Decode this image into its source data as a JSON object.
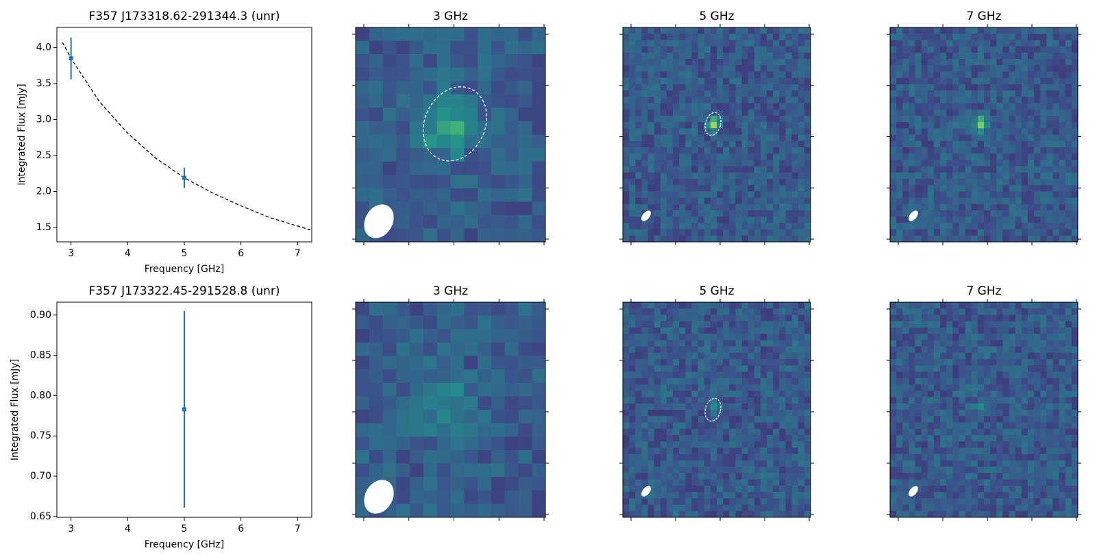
{
  "chart_data": [
    {
      "type": "errorbar",
      "title": "F357 J173318.62-291344.3 (unr)",
      "xlabel": "Frequency [GHz]",
      "ylabel": "Integrated Flux [mJy]",
      "x": [
        3,
        5
      ],
      "values": [
        3.85,
        2.19
      ],
      "errors": [
        0.29,
        0.14
      ],
      "color": "#1f77b4",
      "fit": {
        "x": [
          2.85,
          3,
          3.5,
          4,
          4.5,
          5,
          5.5,
          6,
          6.5,
          7,
          7.25
        ],
        "y": [
          4.07,
          3.85,
          3.25,
          2.81,
          2.46,
          2.19,
          1.98,
          1.8,
          1.64,
          1.52,
          1.46
        ]
      },
      "xlim": [
        2.75,
        7.25
      ],
      "ylim": [
        1.3,
        4.28
      ],
      "xticks": [
        3,
        4,
        5,
        6,
        7
      ],
      "yticks": [
        1.5,
        {
          "value": 2,
          "label": "2.0"
        },
        2.5,
        {
          "value": 3,
          "label": "3.0"
        },
        3.5,
        {
          "value": 4,
          "label": "4.0"
        }
      ]
    },
    {
      "type": "errorbar",
      "title": "F357 J173322.45-291528.8 (unr)",
      "xlabel": "Frequency [GHz]",
      "ylabel": "Integrated Flux [mJy]",
      "x": [
        5
      ],
      "values": [
        0.783
      ],
      "errors": [
        0.122
      ],
      "color": "#1f77b4",
      "xlim": [
        2.75,
        7.25
      ],
      "ylim": [
        0.649,
        0.916
      ],
      "xticks": [
        3,
        4,
        5,
        6,
        7
      ],
      "yticks": [
        0.65,
        {
          "value": 0.7,
          "label": "0.70"
        },
        0.75,
        {
          "value": 0.8,
          "label": "0.80"
        },
        0.85,
        {
          "value": 0.9,
          "label": "0.90"
        }
      ]
    }
  ],
  "image_panels": [
    [
      "3 GHz",
      "5 GHz",
      "7 GHz"
    ],
    [
      "3 GHz",
      "5 GHz",
      "7 GHz"
    ]
  ]
}
